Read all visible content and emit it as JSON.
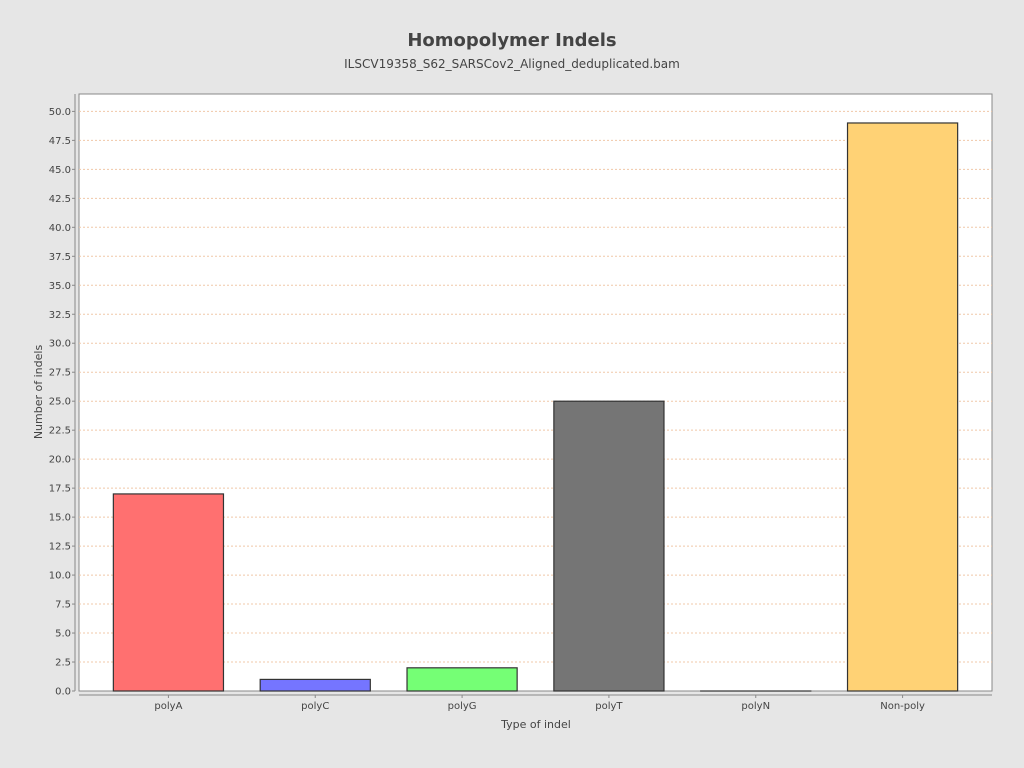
{
  "chart_data": {
    "type": "bar",
    "title": "Homopolymer Indels",
    "subtitle": "ILSCV19358_S62_SARSCov2_Aligned_deduplicated.bam",
    "xlabel": "Type of indel",
    "ylabel": "Number of indels",
    "categories": [
      "polyA",
      "polyC",
      "polyG",
      "polyT",
      "polyN",
      "Non-poly"
    ],
    "values": [
      17,
      1,
      2,
      25,
      0,
      49
    ],
    "colors": [
      "#ff7070",
      "#7575ff",
      "#75ff75",
      "#757575",
      "#ffff70",
      "#ffd275"
    ],
    "ylim": [
      0,
      51.5
    ],
    "yticks": [
      "0.0",
      "2.5",
      "5.0",
      "7.5",
      "10.0",
      "12.5",
      "15.0",
      "17.5",
      "20.0",
      "22.5",
      "25.0",
      "27.5",
      "30.0",
      "32.5",
      "35.0",
      "37.5",
      "40.0",
      "42.5",
      "45.0",
      "47.5",
      "50.0"
    ],
    "grid": true,
    "legend": "none"
  }
}
